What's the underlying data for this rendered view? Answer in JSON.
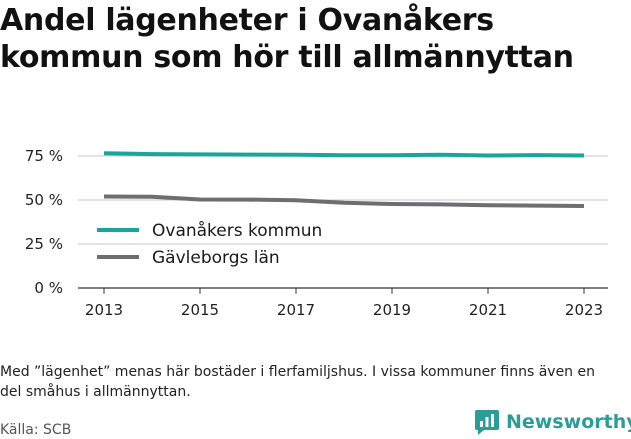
{
  "title": "Andel lägenheter i Ovanåkers kommun som hör till allmännyttan",
  "footnote": "Med ”lägenhet” menas här bostäder i flerfamiljshus. I vissa kommuner finns även en del småhus i allmännyttan.",
  "source": "Källa: SCB",
  "brand": {
    "name": "Newsworthy",
    "icon": "newsworthy-logo-icon",
    "color": "#2a9d96"
  },
  "chart_data": {
    "type": "line",
    "title": "Andel lägenheter i Ovanåkers kommun som hör till allmännyttan",
    "xlabel": "",
    "ylabel": "",
    "x": [
      2013,
      2014,
      2015,
      2016,
      2017,
      2018,
      2019,
      2020,
      2021,
      2022,
      2023
    ],
    "xticks": [
      "2013",
      "2015",
      "2017",
      "2019",
      "2021",
      "2023"
    ],
    "ylim": [
      0,
      75
    ],
    "yticks": [
      0,
      25,
      50,
      75
    ],
    "ytick_labels": [
      "0 %",
      "25 %",
      "50 %",
      "75 %"
    ],
    "grid": true,
    "legend_position": "left",
    "series": [
      {
        "name": "Ovanåkers kommun",
        "color": "#1aa59a",
        "values": [
          76.6,
          76.1,
          75.9,
          75.8,
          75.7,
          75.4,
          75.4,
          75.7,
          75.3,
          75.5,
          75.3
        ]
      },
      {
        "name": "Gävleborgs län",
        "color": "#6d6d72",
        "values": [
          52.0,
          51.8,
          50.3,
          50.2,
          49.9,
          48.4,
          47.7,
          47.5,
          47.0,
          46.8,
          46.6
        ]
      }
    ]
  }
}
